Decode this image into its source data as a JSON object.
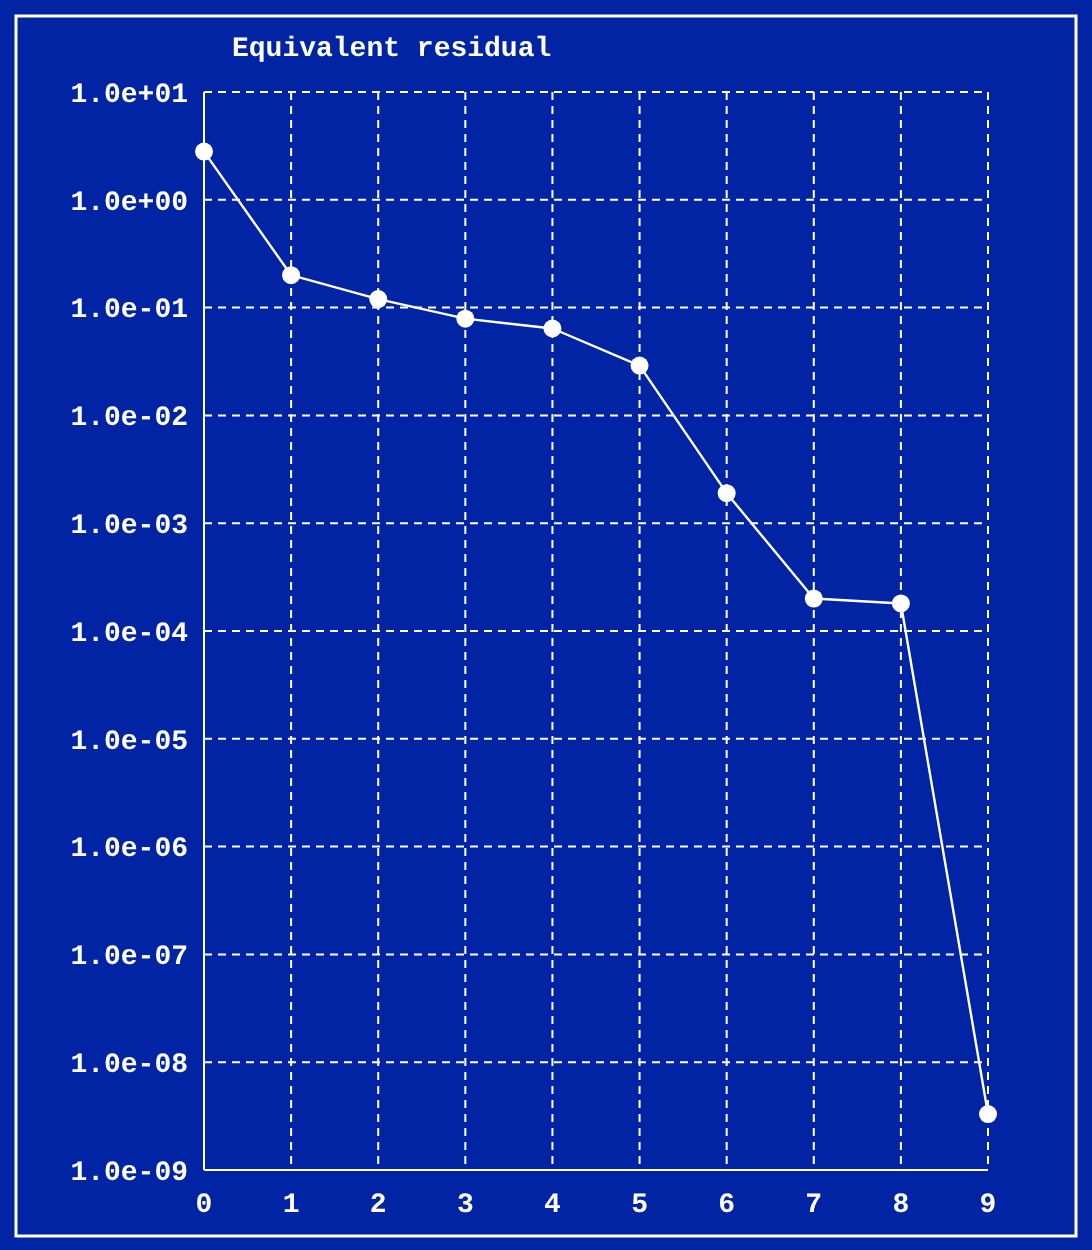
{
  "chart_data": {
    "type": "line",
    "title": "Equivalent residual",
    "x": [
      0,
      1,
      2,
      3,
      4,
      5,
      6,
      7,
      8,
      9
    ],
    "series": [
      {
        "color": "#ffffff",
        "values": [
          2.8,
          0.2,
          0.12,
          0.079,
          0.064,
          0.029,
          0.0019,
          0.0002,
          0.00018,
          3.3e-09
        ]
      }
    ],
    "xlim": [
      0,
      9
    ],
    "xticks": [
      0,
      1,
      2,
      3,
      4,
      5,
      6,
      7,
      8,
      9
    ],
    "ylim": [
      1e-09,
      10
    ],
    "yticks": [
      {
        "value": 10,
        "label": "1.0e+01"
      },
      {
        "value": 1,
        "label": "1.0e+00"
      },
      {
        "value": 0.1,
        "label": "1.0e-01"
      },
      {
        "value": 0.01,
        "label": "1.0e-02"
      },
      {
        "value": 0.001,
        "label": "1.0e-03"
      },
      {
        "value": 0.0001,
        "label": "1.0e-04"
      },
      {
        "value": 1e-05,
        "label": "1.0e-05"
      },
      {
        "value": 1e-06,
        "label": "1.0e-06"
      },
      {
        "value": 1e-07,
        "label": "1.0e-07"
      },
      {
        "value": 1e-08,
        "label": "1.0e-08"
      },
      {
        "value": 1e-09,
        "label": "1.0e-09"
      }
    ],
    "log": "y",
    "grid": true,
    "marker": "circle",
    "line_style": "solid"
  }
}
